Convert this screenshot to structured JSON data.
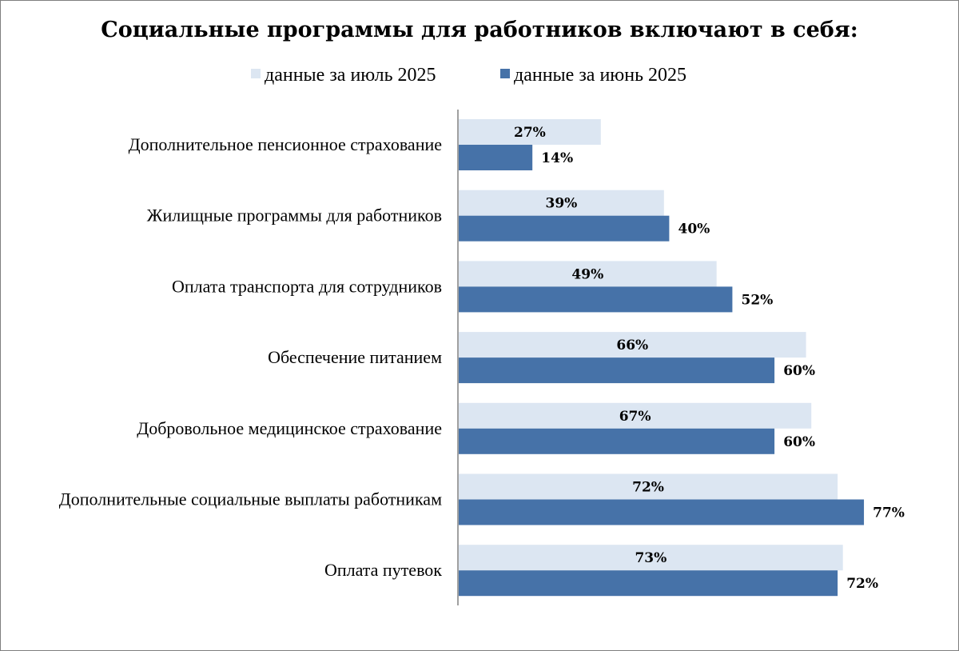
{
  "chart_data": {
    "type": "bar",
    "orientation": "horizontal",
    "title": "Социальные программы для работников включают в себя:",
    "categories": [
      "Дополнительное пенсионное страхование",
      "Жилищные программы для работников",
      "Оплата транспорта для сотрудников",
      "Обеспечение питанием",
      "Добровольное медицинское страхование",
      "Дополнительные социальные выплаты работникам",
      "Оплата путевок"
    ],
    "series": [
      {
        "name": "данные за июль 2025",
        "color": "#dce6f2",
        "values": [
          27,
          39,
          49,
          66,
          67,
          72,
          73
        ],
        "labels": [
          "27%",
          "39%",
          "49%",
          "66%",
          "67%",
          "72%",
          "73%"
        ]
      },
      {
        "name": "данные за июнь 2025",
        "color": "#4672a8",
        "values": [
          14,
          40,
          52,
          60,
          60,
          77,
          72
        ],
        "labels": [
          "14%",
          "40%",
          "52%",
          "60%",
          "60%",
          "77%",
          "72%"
        ]
      }
    ],
    "xlim": [
      0,
      100
    ],
    "unit": "%",
    "grid": false,
    "legend_position": "top",
    "axis_color": "#808080"
  }
}
